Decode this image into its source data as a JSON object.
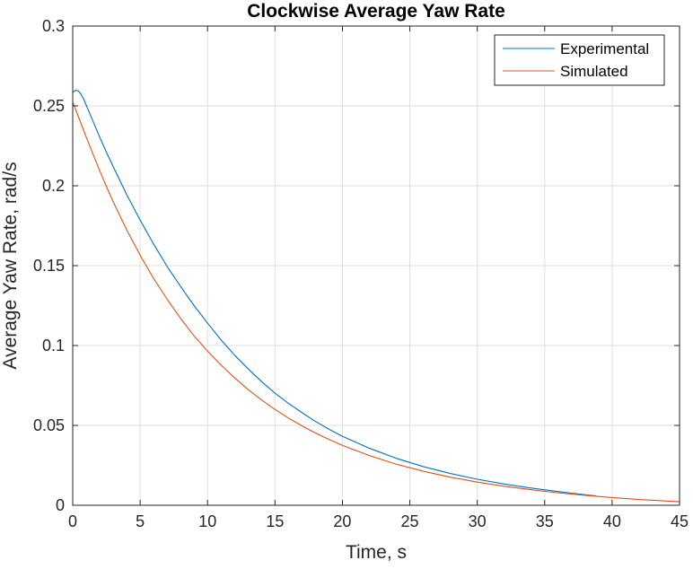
{
  "chart_data": {
    "type": "line",
    "title": "Clockwise Average Yaw Rate",
    "xlabel": "Time, s",
    "ylabel": "Average Yaw Rate, rad/s",
    "xlim": [
      0,
      45
    ],
    "ylim": [
      0,
      0.3
    ],
    "xticks": [
      0,
      5,
      10,
      15,
      20,
      25,
      30,
      35,
      40,
      45
    ],
    "xtick_labels": [
      "0",
      "5",
      "10",
      "15",
      "20",
      "25",
      "30",
      "35",
      "40",
      "45"
    ],
    "yticks": [
      0,
      0.05,
      0.1,
      0.15,
      0.2,
      0.25,
      0.3
    ],
    "ytick_labels": [
      "0",
      "0.05",
      "0.1",
      "0.15",
      "0.2",
      "0.25",
      "0.3"
    ],
    "grid": true,
    "box": true,
    "legend": {
      "position": "top-right",
      "box": true
    },
    "series": [
      {
        "name": "Experimental",
        "color": "#0072BD",
        "x": [
          0,
          0.2,
          0.4,
          0.6,
          0.8,
          1.0,
          1.5,
          2,
          2.5,
          3,
          4,
          5,
          6,
          7,
          8,
          9,
          10,
          11,
          12,
          13,
          14,
          15,
          16,
          17,
          18,
          19,
          20,
          22,
          24,
          26,
          28,
          30,
          32,
          34,
          36,
          38,
          38.8
        ],
        "y": [
          0.2585,
          0.2597,
          0.2595,
          0.2575,
          0.2545,
          0.2505,
          0.2405,
          0.2305,
          0.221,
          0.212,
          0.1945,
          0.1785,
          0.1635,
          0.1495,
          0.137,
          0.125,
          0.114,
          0.1035,
          0.094,
          0.0855,
          0.0775,
          0.0702,
          0.0638,
          0.058,
          0.0525,
          0.0476,
          0.0432,
          0.0357,
          0.0294,
          0.0242,
          0.0199,
          0.0163,
          0.0133,
          0.0108,
          0.0086,
          0.0066,
          0.0059
        ]
      },
      {
        "name": "Simulated",
        "color": "#D95319",
        "x": [
          0,
          0.5,
          1,
          1.5,
          2,
          2.5,
          3,
          4,
          5,
          6,
          7,
          8,
          9,
          10,
          11,
          12,
          13,
          14,
          15,
          16,
          17,
          18,
          19,
          20,
          22,
          24,
          26,
          28,
          30,
          32,
          34,
          36,
          38,
          40,
          42,
          45
        ],
        "y": [
          0.2525,
          0.2415,
          0.2305,
          0.22,
          0.2095,
          0.1995,
          0.19,
          0.1725,
          0.1565,
          0.142,
          0.129,
          0.117,
          0.106,
          0.0965,
          0.0878,
          0.0798,
          0.0725,
          0.066,
          0.06,
          0.0546,
          0.0497,
          0.0452,
          0.0412,
          0.0375,
          0.0311,
          0.0257,
          0.0213,
          0.0176,
          0.0145,
          0.0119,
          0.0097,
          0.0078,
          0.0062,
          0.0048,
          0.0036,
          0.0022
        ]
      }
    ]
  }
}
